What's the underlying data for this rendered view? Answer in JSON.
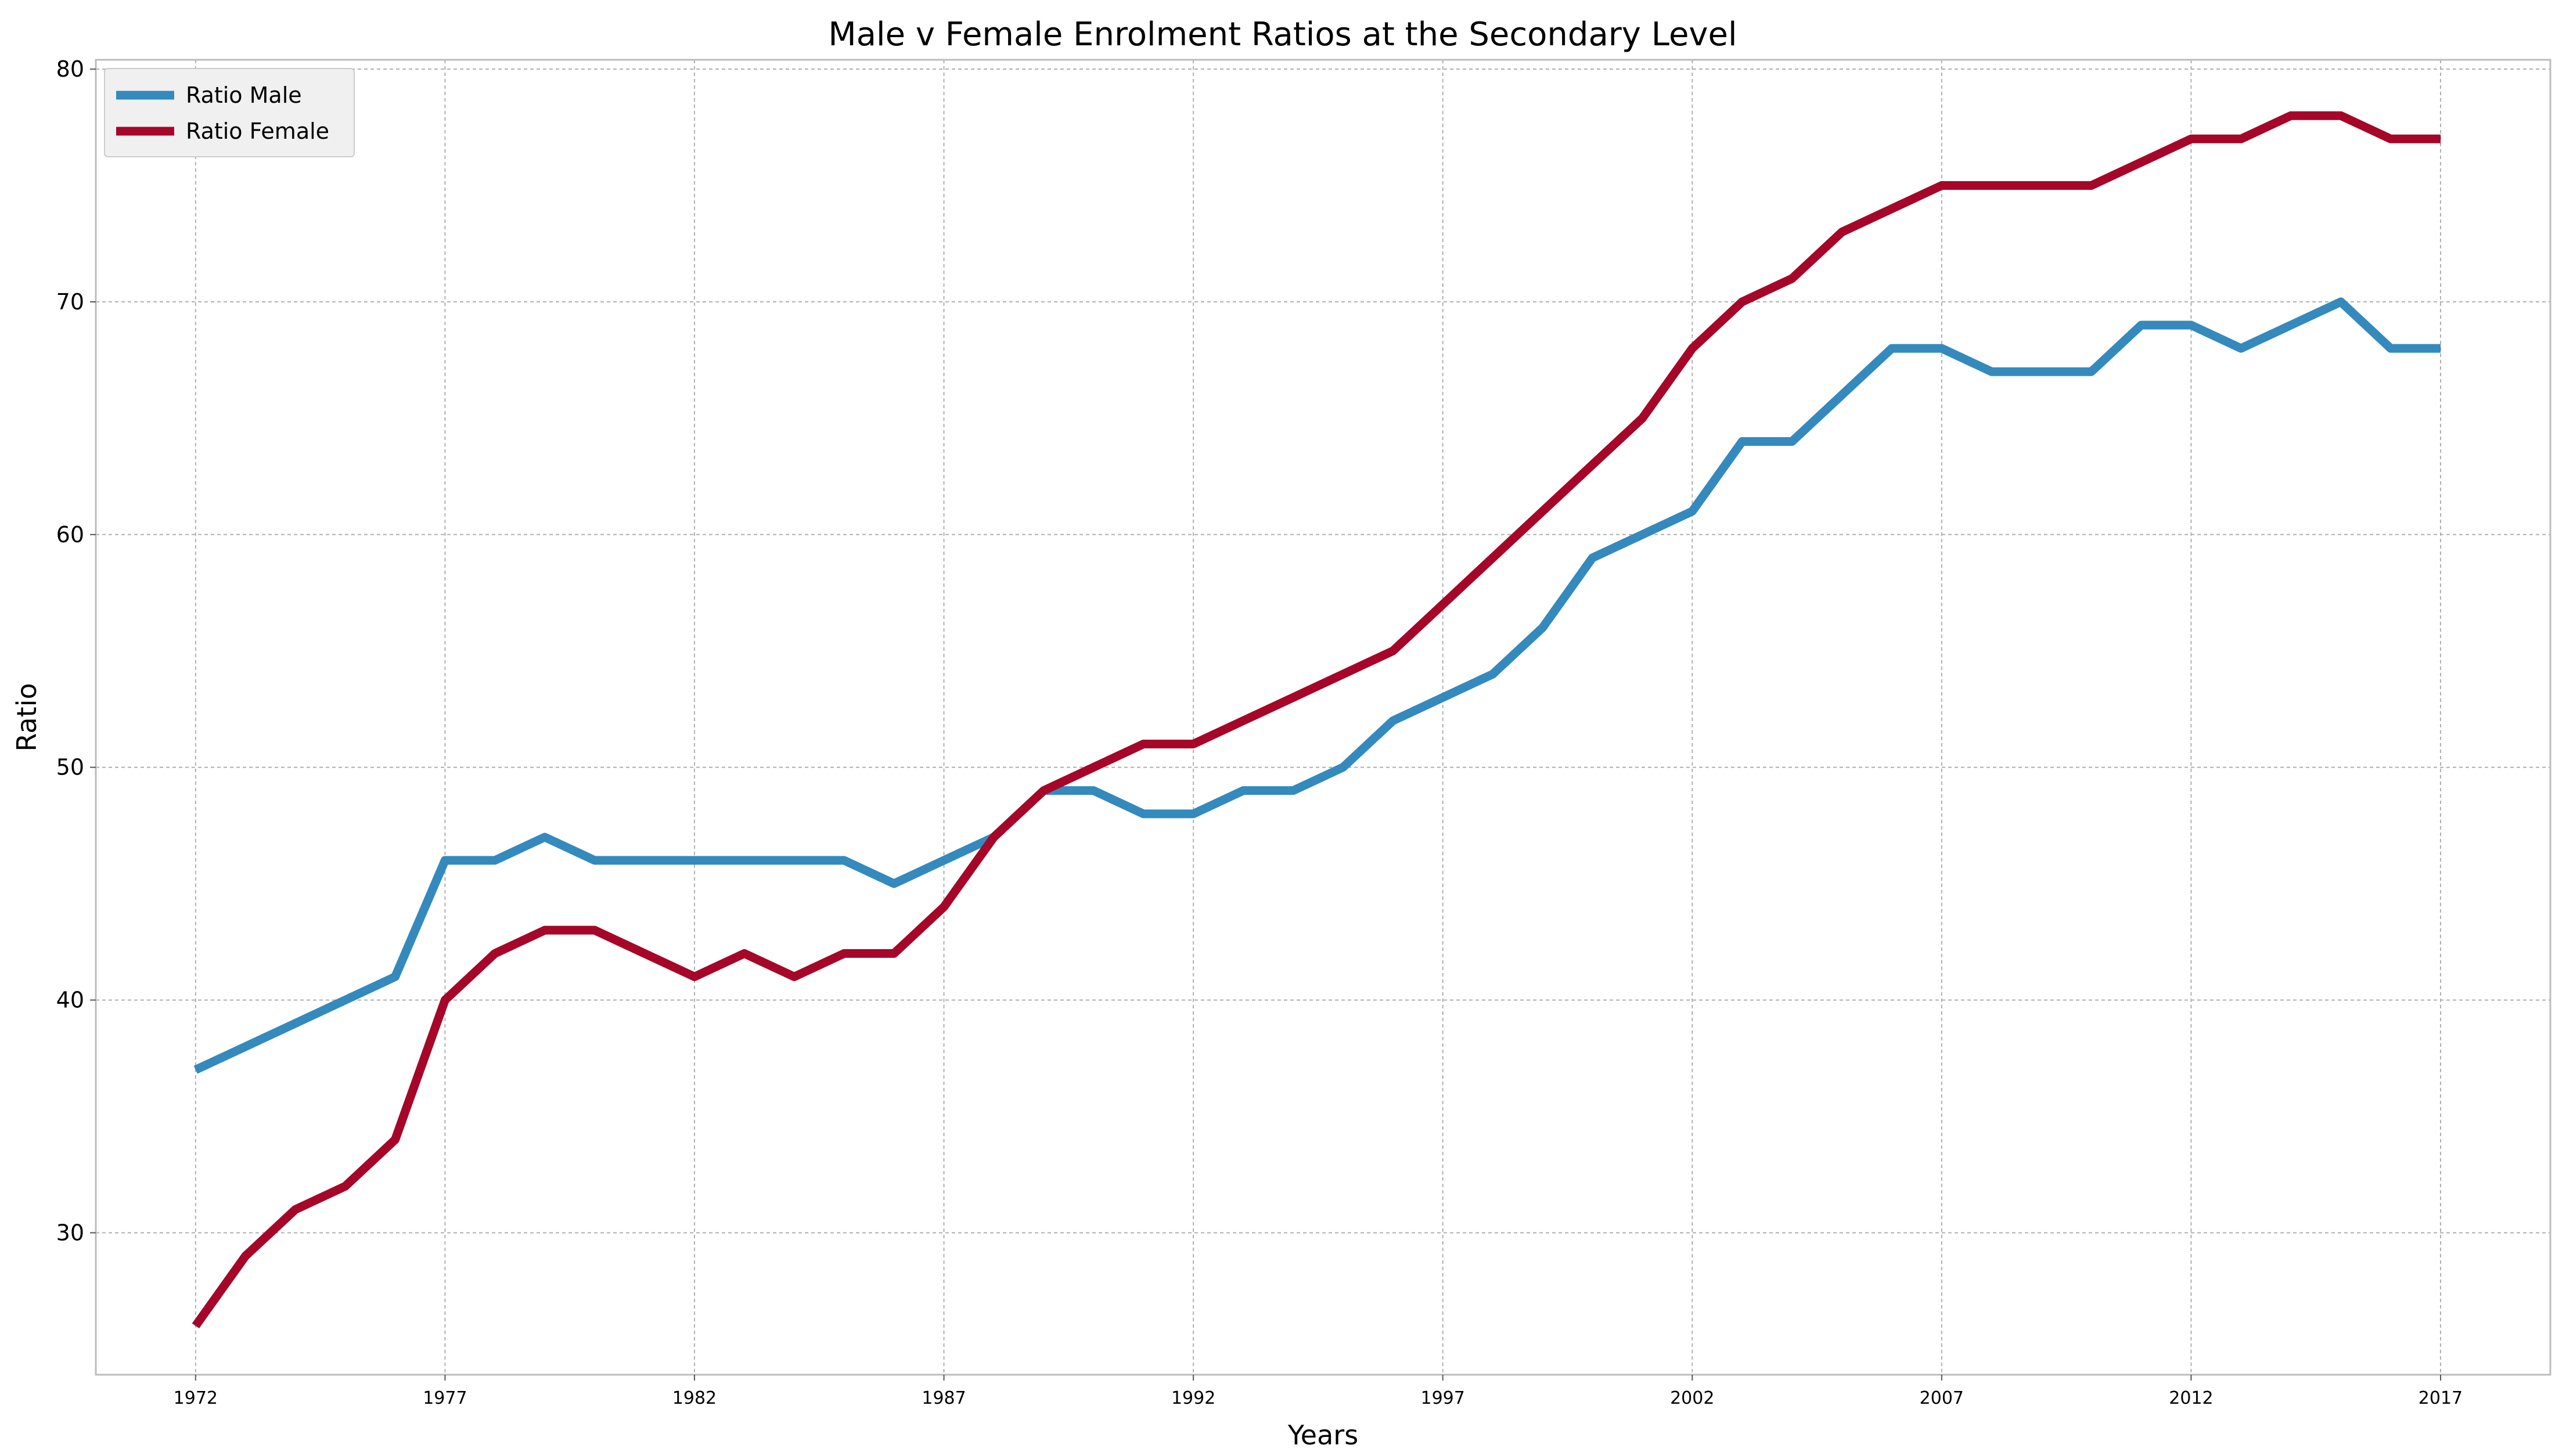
{
  "chart_data": {
    "type": "line",
    "title": "Male v Female Enrolment Ratios at the Secondary Level",
    "xlabel": "Years",
    "ylabel": "Ratio",
    "xlim": [
      1970,
      2019.2
    ],
    "ylim": [
      23.9,
      80.4
    ],
    "xticks": [
      1972,
      1977,
      1982,
      1987,
      1992,
      1997,
      2002,
      2007,
      2012,
      2017
    ],
    "yticks": [
      30,
      40,
      50,
      60,
      70,
      80
    ],
    "grid": true,
    "legend_position": "top-left",
    "x": [
      1972,
      1973,
      1974,
      1975,
      1976,
      1977,
      1978,
      1979,
      1980,
      1981,
      1982,
      1983,
      1984,
      1985,
      1986,
      1987,
      1988,
      1989,
      1990,
      1991,
      1992,
      1993,
      1994,
      1995,
      1996,
      1997,
      1998,
      1999,
      2000,
      2001,
      2002,
      2003,
      2004,
      2005,
      2006,
      2007,
      2008,
      2009,
      2010,
      2011,
      2012,
      2013,
      2014,
      2015,
      2016,
      2017
    ],
    "series": [
      {
        "name": "Ratio Male",
        "color": "#348abd",
        "values": [
          37,
          38,
          39,
          40,
          41,
          46,
          46,
          47,
          46,
          46,
          46,
          46,
          46,
          46,
          45,
          46,
          47,
          49,
          49,
          48,
          48,
          49,
          49,
          50,
          52,
          53,
          54,
          56,
          59,
          60,
          61,
          64,
          64,
          66,
          68,
          68,
          67,
          67,
          67,
          69,
          69,
          68,
          69,
          70,
          68,
          68
        ]
      },
      {
        "name": "Ratio Female",
        "color": "#a60628",
        "values": [
          26,
          29,
          31,
          32,
          34,
          40,
          42,
          43,
          43,
          42,
          41,
          42,
          41,
          42,
          42,
          44,
          47,
          49,
          50,
          51,
          51,
          52,
          53,
          54,
          55,
          57,
          59,
          61,
          63,
          65,
          68,
          70,
          71,
          73,
          74,
          75,
          75,
          75,
          75,
          76,
          77,
          77,
          78,
          78,
          77,
          77
        ]
      }
    ]
  }
}
